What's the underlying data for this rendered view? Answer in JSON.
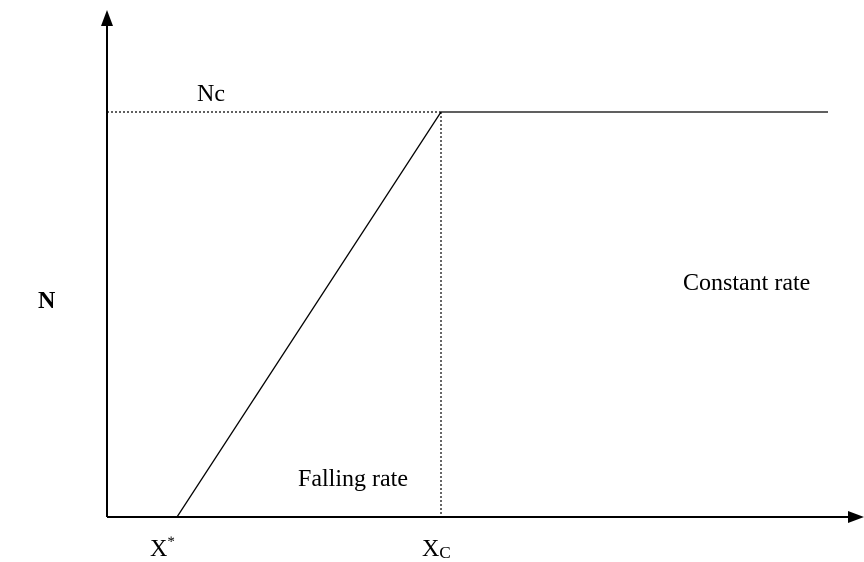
{
  "labels": {
    "y_axis": "N",
    "nc": "Nc",
    "constant": "Constant rate",
    "falling": "Falling rate",
    "x_star": {
      "base": "X",
      "sup": "*"
    },
    "x_c": {
      "base": "X",
      "sub": "C"
    }
  }
}
